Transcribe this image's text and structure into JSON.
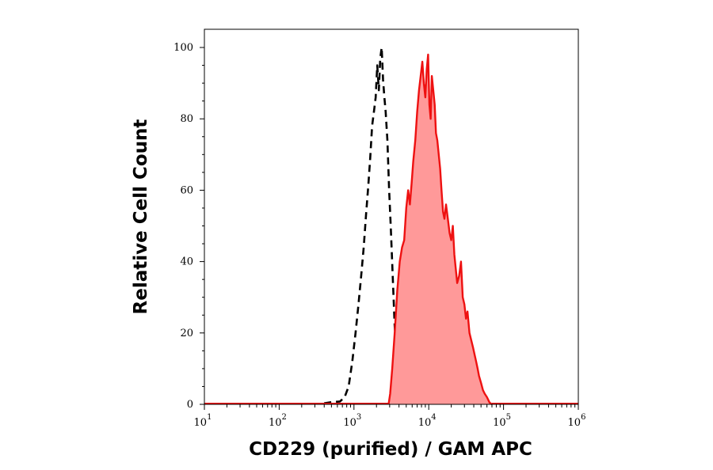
{
  "chart_data": {
    "type": "area",
    "title": "",
    "xlabel": "CD229 (purified) / GAM APC",
    "ylabel": "Relative Cell Count",
    "x_scale": "log",
    "xlim": [
      10,
      1000000
    ],
    "ylim": [
      0,
      100
    ],
    "x_ticks": [
      {
        "base": "10",
        "exp": "1"
      },
      {
        "base": "10",
        "exp": "2"
      },
      {
        "base": "10",
        "exp": "3"
      },
      {
        "base": "10",
        "exp": "4"
      },
      {
        "base": "10",
        "exp": "5"
      },
      {
        "base": "10",
        "exp": "6"
      }
    ],
    "y_ticks": [
      "0",
      "20",
      "40",
      "60",
      "80",
      "100"
    ],
    "grid": false,
    "legend": "none",
    "series": [
      {
        "style": "dashed-line",
        "color": "#000000",
        "x": [
          400,
          500,
          650,
          750,
          850,
          950,
          1050,
          1150,
          1250,
          1350,
          1450,
          1550,
          1650,
          1750,
          1850,
          1950,
          2050,
          2150,
          2250,
          2350,
          2450,
          2550,
          2650,
          2800,
          2950,
          3100,
          3300,
          3500,
          3800,
          4100,
          4500,
          5000,
          6000,
          8000
        ],
        "y": [
          0.3,
          0.6,
          0.8,
          2,
          5,
          12,
          20,
          28,
          36,
          44,
          53,
          61,
          69,
          78,
          82,
          86,
          95,
          88,
          97,
          100,
          91,
          86,
          82,
          74,
          60,
          50,
          36,
          22,
          10,
          4,
          1.5,
          0.5,
          0.3,
          0.2
        ]
      },
      {
        "style": "filled",
        "color": "#ee1111",
        "fill": "#ff9999",
        "x": [
          2900,
          3050,
          3250,
          3500,
          3800,
          4100,
          4400,
          4700,
          5000,
          5300,
          5600,
          5900,
          6200,
          6600,
          7000,
          7400,
          7800,
          8200,
          8600,
          9000,
          9400,
          9800,
          10200,
          10600,
          11000,
          11500,
          12000,
          12500,
          13000,
          13600,
          14200,
          14800,
          15500,
          16200,
          17000,
          18000,
          19000,
          20000,
          21000,
          22000,
          23000,
          24000,
          25500,
          27000,
          28500,
          30000,
          31500,
          33000,
          35000,
          37000,
          39000,
          41000,
          43000,
          45000,
          47000,
          50000,
          53000,
          56000,
          60000,
          65000,
          70000
        ],
        "y": [
          0,
          3,
          10,
          20,
          32,
          40,
          44,
          46,
          55,
          60,
          56,
          62,
          68,
          74,
          82,
          88,
          92,
          96,
          90,
          86,
          94,
          98,
          84,
          80,
          92,
          88,
          84,
          76,
          74,
          70,
          66,
          60,
          54,
          52,
          56,
          52,
          48,
          46,
          50,
          42,
          38,
          34,
          36,
          40,
          30,
          28,
          24,
          26,
          20,
          18,
          16,
          14,
          12,
          10,
          8,
          6,
          4,
          3,
          2,
          0.5,
          0
        ]
      }
    ]
  }
}
